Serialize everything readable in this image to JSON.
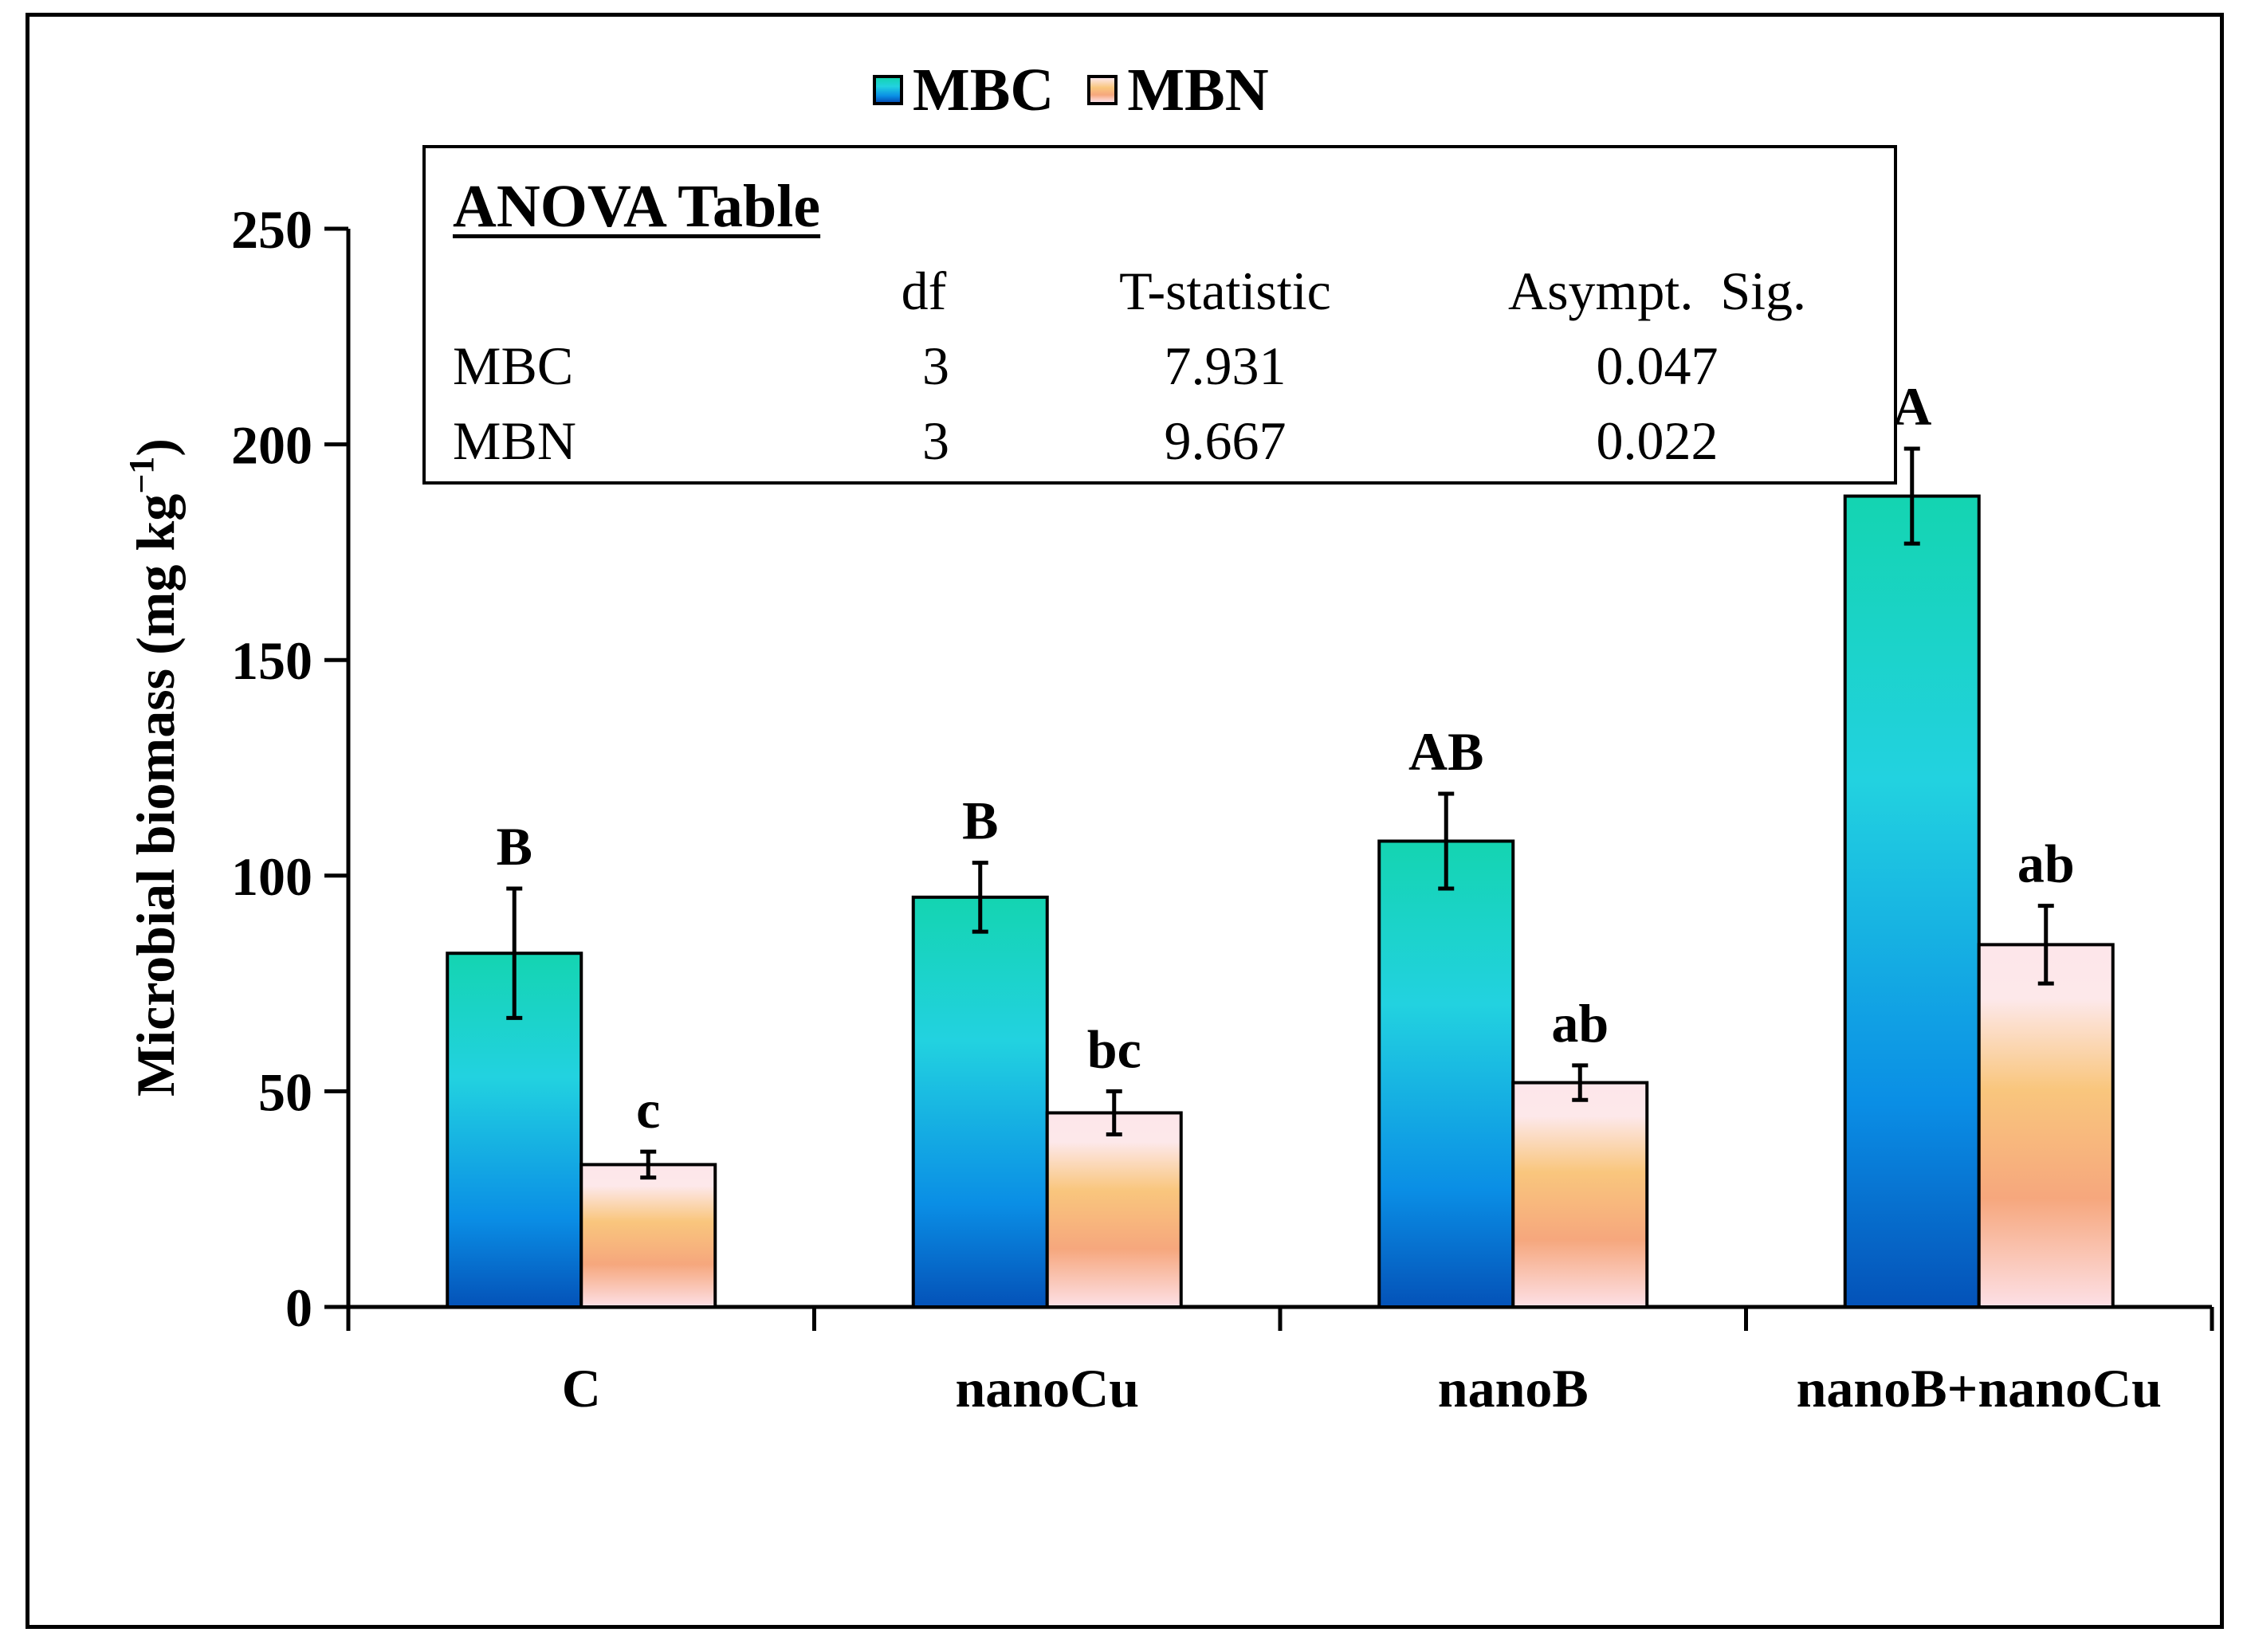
{
  "chart_data": {
    "type": "bar",
    "title": "",
    "ylabel": "Microbial biomass (mg kg",
    "ylabel_superscript": "−1",
    "ylabel_close": ")",
    "xlabel": "",
    "ylim": [
      0,
      250
    ],
    "yticks": [
      0,
      50,
      100,
      150,
      200,
      250
    ],
    "categories": [
      "C",
      "nanoCu",
      "nanoB",
      "nanoB+nanoCu"
    ],
    "series": [
      {
        "name": "MBC",
        "values": [
          82,
          95,
          108,
          188
        ],
        "errors": [
          15,
          8,
          11,
          11
        ],
        "letters": [
          "B",
          "B",
          "AB",
          "A"
        ],
        "color_top": "#14d4b1",
        "color_mid": "#22d2e0",
        "color_bottom": "#0452b8"
      },
      {
        "name": "MBN",
        "values": [
          33,
          45,
          52,
          84
        ],
        "errors": [
          3,
          5,
          4,
          9
        ],
        "letters": [
          "c",
          "bc",
          "ab",
          "ab"
        ],
        "color_top": "#fde6ea",
        "color_mid": "#f6a77d",
        "color_bottom": "#fde0e6"
      }
    ],
    "legend": {
      "placement": "top-center",
      "entries": [
        "MBC",
        "MBN"
      ]
    }
  },
  "anova": {
    "title": "ANOVA Table",
    "headers": [
      "",
      "df",
      "T-statistic",
      "Asympt.  Sig."
    ],
    "rows": [
      {
        "label": "MBC",
        "df": "3",
        "t": "7.931",
        "sig": "0.047"
      },
      {
        "label": "MBN",
        "df": "3",
        "t": "9.667",
        "sig": "0.022"
      }
    ]
  }
}
